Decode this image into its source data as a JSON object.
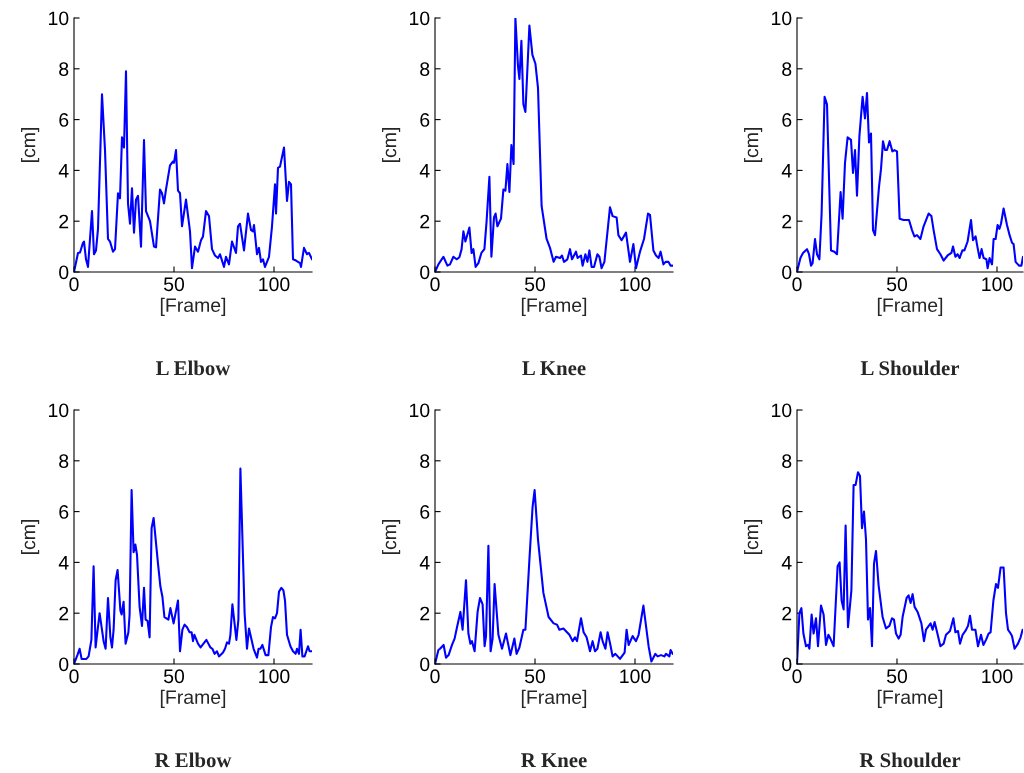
{
  "chart_data": [
    {
      "type": "line",
      "title": "L Elbow",
      "xlabel": "[Frame]",
      "ylabel": "[cm]",
      "color": "#0000ff",
      "grid": false,
      "xlim": [
        0,
        119
      ],
      "ylim": [
        0,
        10
      ],
      "xticks": [
        0,
        50,
        100
      ],
      "yticks": [
        0,
        2,
        4,
        6,
        8,
        10
      ],
      "x": [
        0,
        2,
        3,
        4.5,
        5,
        6,
        7,
        9,
        10,
        11,
        12,
        14,
        15.5,
        17,
        18,
        19.5,
        20.5,
        22,
        23,
        24,
        25,
        26,
        27,
        28,
        29,
        30,
        31,
        32,
        33.5,
        35,
        36,
        38,
        40,
        41,
        43,
        44,
        45,
        46,
        48,
        49.5,
        50,
        51,
        52,
        53,
        54,
        56,
        58,
        59,
        60.5,
        62,
        63.5,
        64.5,
        66,
        67.5,
        69,
        70.5,
        72,
        73,
        75,
        76,
        77.5,
        79,
        81,
        82,
        83,
        85,
        87,
        88.5,
        89.5,
        90,
        91.5,
        92.5,
        93.5,
        94.5,
        95.5,
        97.5,
        99,
        100.5,
        101,
        102,
        103,
        105,
        106.5,
        107.5,
        108.5,
        109.5,
        111,
        113,
        113.5,
        115,
        116.5,
        117.5,
        119
      ],
      "values": [
        0,
        0.75,
        0.77,
        1.15,
        1.2,
        0.5,
        0.2,
        2.4,
        0.7,
        0.85,
        1.7,
        7.0,
        4.8,
        1.3,
        1.2,
        0.8,
        0.9,
        3.1,
        2.9,
        5.3,
        4.9,
        7.9,
        2.7,
        1.9,
        3.3,
        1.55,
        2.85,
        3.0,
        1.0,
        5.2,
        2.4,
        2.0,
        1.0,
        0.97,
        3.25,
        3.1,
        2.7,
        3.25,
        4.2,
        4.35,
        4.3,
        4.8,
        3.2,
        3.1,
        1.8,
        2.85,
        1.6,
        0.15,
        1.0,
        0.8,
        1.25,
        1.4,
        2.4,
        2.2,
        0.9,
        0.65,
        0.55,
        0.7,
        0.2,
        0.6,
        0.3,
        1.2,
        0.75,
        1.8,
        1.9,
        0.85,
        2.3,
        1.65,
        1.6,
        1.85,
        0.7,
        0.95,
        0.4,
        0.5,
        0.2,
        0.6,
        1.8,
        3.45,
        2.3,
        4.1,
        4.15,
        4.9,
        2.8,
        3.55,
        3.45,
        0.5,
        0.45,
        0.35,
        0.2,
        0.95,
        0.7,
        0.75,
        0.5
      ]
    },
    {
      "type": "line",
      "title": "L Knee",
      "xlabel": "[Frame]",
      "ylabel": "[cm]",
      "color": "#0000ff",
      "grid": false,
      "xlim": [
        0,
        119
      ],
      "ylim": [
        0,
        10
      ],
      "xticks": [
        0,
        50,
        100
      ],
      "yticks": [
        0,
        2,
        4,
        6,
        8,
        10
      ],
      "x": [
        0,
        1.7,
        4.2,
        6.2,
        7.5,
        9.2,
        10.8,
        12.2,
        13.3,
        14.2,
        15.2,
        17.2,
        18.3,
        19.2,
        20.3,
        21.7,
        23.2,
        24.7,
        25.8,
        27.2,
        28.2,
        29.5,
        30.3,
        31.2,
        33,
        34.2,
        35.2,
        36.2,
        37.2,
        38.2,
        39.3,
        40.2,
        41.5,
        42.2,
        43.2,
        44.2,
        45.2,
        47.2,
        48.7,
        50.2,
        51.5,
        53.3,
        55.8,
        57.5,
        59.3,
        60.5,
        62.5,
        63.5,
        64.5,
        66.2,
        67.5,
        68.5,
        70.5,
        71.3,
        73,
        73.8,
        75.2,
        76.2,
        77.2,
        78.3,
        79.5,
        81.2,
        82.2,
        83.3,
        84.7,
        87.5,
        88.8,
        90.8,
        91.7,
        93.3,
        95.5,
        97.5,
        99.2,
        100.5,
        102.5,
        104.5,
        106.5,
        107.5,
        109.2,
        110.5,
        111.8,
        112.8,
        114.2,
        115.3,
        116.7,
        117.8,
        118.8
      ],
      "values": [
        0,
        0.3,
        0.6,
        0.25,
        0.3,
        0.6,
        0.5,
        0.58,
        0.9,
        1.6,
        1.2,
        1.75,
        0.75,
        0.9,
        0.2,
        0.35,
        0.75,
        0.9,
        2.0,
        3.75,
        0.6,
        2.15,
        2.3,
        1.8,
        2.1,
        3.25,
        3.2,
        4.25,
        3.15,
        5.0,
        4.25,
        10,
        8.1,
        7.6,
        9.1,
        6.6,
        6.3,
        9.7,
        8.55,
        8.2,
        7.25,
        2.6,
        1.3,
        0.95,
        0.4,
        0.6,
        0.55,
        0.65,
        0.4,
        0.5,
        0.9,
        0.5,
        0.8,
        0.55,
        0.65,
        0.25,
        0.7,
        0.4,
        0.85,
        0.2,
        0.2,
        0.7,
        0.6,
        0.15,
        0.4,
        2.55,
        2.2,
        2.15,
        1.45,
        1.25,
        1.55,
        0.4,
        1.1,
        0.15,
        0.8,
        1.3,
        2.3,
        2.25,
        0.85,
        0.65,
        0.55,
        0.8,
        0.3,
        0.4,
        0.4,
        0.25,
        0.25
      ]
    },
    {
      "type": "line",
      "title": "L Shoulder",
      "xlabel": "[Frame]",
      "ylabel": "[cm]",
      "color": "#0000ff",
      "grid": false,
      "xlim": [
        0,
        113
      ],
      "ylim": [
        0,
        10
      ],
      "xticks": [
        0,
        50,
        100
      ],
      "yticks": [
        0,
        2,
        4,
        6,
        8,
        10
      ],
      "x": [
        0,
        1.7,
        3,
        5,
        6,
        7,
        7.8,
        9,
        10,
        11.2,
        12.3,
        13.8,
        15,
        17,
        18.7,
        20,
        21.8,
        22.8,
        24,
        25.3,
        27,
        28,
        29,
        30,
        31.2,
        32.8,
        34,
        35,
        36,
        37,
        38,
        39,
        41,
        42,
        43,
        44,
        45,
        46.3,
        47.7,
        48.7,
        50,
        51.3,
        53.3,
        56,
        57.5,
        58.7,
        60,
        61.7,
        63.3,
        65.8,
        67.2,
        68.3,
        70,
        71.7,
        73.3,
        75.3,
        77.2,
        78,
        79.2,
        80.3,
        81.3,
        82.7,
        83.7,
        85.3,
        87,
        88,
        89.3,
        90.3,
        91.3,
        92.3,
        93.3,
        94.7,
        95.3,
        96.3,
        97.5,
        98.3,
        99.3,
        100.3,
        101.2,
        102,
        103.3,
        105,
        106.3,
        107.5,
        108.3,
        109.3,
        111,
        112.2,
        113
      ],
      "values": [
        0,
        0.55,
        0.75,
        0.9,
        0.7,
        0.25,
        0.35,
        1.3,
        0.7,
        0.5,
        2.3,
        6.9,
        6.6,
        0.85,
        0.8,
        0.7,
        3.15,
        2.1,
        4.3,
        5.3,
        5.2,
        3.9,
        4.8,
        3.0,
        5.35,
        6.9,
        6.05,
        7.05,
        5.1,
        5.45,
        1.65,
        1.45,
        3.35,
        4.05,
        5.15,
        4.8,
        4.8,
        5.15,
        4.75,
        4.8,
        4.75,
        2.1,
        2.05,
        2.05,
        1.65,
        1.4,
        1.45,
        1.3,
        1.8,
        2.3,
        2.2,
        1.65,
        0.9,
        0.7,
        0.45,
        0.65,
        0.75,
        1.0,
        0.6,
        0.7,
        0.55,
        0.85,
        0.85,
        1.2,
        2.05,
        1.25,
        1.4,
        0.95,
        0.55,
        0.9,
        0.55,
        0.5,
        0.15,
        0.55,
        0.3,
        1.3,
        1.3,
        1.85,
        1.7,
        1.9,
        2.5,
        1.85,
        1.45,
        1.15,
        1.1,
        0.4,
        0.25,
        0.25,
        0.6
      ]
    },
    {
      "type": "line",
      "title": "R Elbow",
      "xlabel": "[Frame]",
      "ylabel": "[cm]",
      "color": "#0000ff",
      "grid": false,
      "xlim": [
        0,
        119
      ],
      "ylim": [
        0,
        10
      ],
      "xticks": [
        0,
        50,
        100
      ],
      "yticks": [
        0,
        2,
        4,
        6,
        8,
        10
      ],
      "x": [
        0,
        1.7,
        2.8,
        3.8,
        6.2,
        7.3,
        8.7,
        9.8,
        10.8,
        12.8,
        14.8,
        15.8,
        17,
        18.2,
        19,
        19.8,
        20.8,
        21.8,
        23.2,
        23.8,
        24.8,
        25.8,
        27.2,
        27.8,
        28.8,
        29.8,
        30.7,
        31.5,
        32.8,
        34,
        35,
        35.8,
        36.8,
        37.8,
        38.8,
        39.8,
        42,
        43.2,
        44.2,
        45.2,
        46.2,
        47.2,
        48.2,
        49.8,
        52,
        53,
        54.2,
        55.3,
        56.5,
        57.8,
        58.8,
        59.5,
        60.2,
        62,
        63.3,
        66.2,
        68.2,
        69.2,
        70.3,
        71.5,
        72.5,
        74.5,
        75.5,
        76.5,
        77.5,
        78.2,
        79.2,
        81.2,
        82.2,
        83.2,
        85.3,
        86.5,
        87.5,
        89.8,
        91.5,
        92.3,
        93.2,
        94.2,
        95.8,
        97.2,
        98.5,
        99.5,
        100.5,
        101.5,
        102.5,
        103.7,
        104.7,
        105.5,
        106.5,
        108.2,
        109.5,
        110.8,
        111.5,
        112.5,
        113.3,
        114.2,
        115.3,
        117,
        117.8,
        119
      ],
      "values": [
        0,
        0.35,
        0.6,
        0.2,
        0.2,
        0.3,
        0.95,
        3.85,
        0.65,
        2.0,
        0.9,
        0.6,
        2.6,
        1.05,
        0.65,
        1.35,
        3.3,
        3.7,
        2.1,
        1.95,
        2.45,
        0.8,
        1.25,
        1.95,
        6.85,
        4.4,
        4.7,
        4.3,
        2.25,
        1.5,
        3.0,
        1.75,
        1.7,
        1.05,
        5.35,
        5.75,
        3.95,
        3.05,
        2.65,
        1.85,
        1.8,
        1.75,
        2.2,
        1.6,
        2.5,
        0.5,
        1.35,
        1.55,
        1.45,
        1.25,
        1.25,
        0.9,
        1.15,
        0.8,
        0.65,
        0.95,
        0.65,
        0.6,
        0.4,
        0.5,
        0.3,
        0.45,
        0.6,
        0.85,
        0.8,
        1.15,
        2.35,
        0.95,
        1.75,
        7.7,
        2.0,
        0.6,
        1.4,
        0.6,
        0.25,
        0.6,
        0.6,
        0.75,
        0.35,
        0.35,
        1.45,
        1.85,
        1.8,
        2.0,
        2.85,
        3.0,
        2.9,
        2.5,
        1.15,
        0.7,
        0.5,
        0.4,
        0.6,
        0.4,
        1.35,
        0.3,
        0.3,
        0.7,
        0.5,
        0.5
      ]
    },
    {
      "type": "line",
      "title": "R Knee",
      "xlabel": "[Frame]",
      "ylabel": "[cm]",
      "color": "#0000ff",
      "grid": false,
      "xlim": [
        0,
        119
      ],
      "ylim": [
        0,
        10
      ],
      "xticks": [
        0,
        50,
        100
      ],
      "yticks": [
        0,
        2,
        4,
        6,
        8,
        10
      ],
      "x": [
        0,
        1.7,
        2.5,
        4.3,
        5.5,
        6.8,
        8.5,
        9.8,
        11,
        12.7,
        13.8,
        15.5,
        16.7,
        17.7,
        18.5,
        19.8,
        21.3,
        22.5,
        23.8,
        24.8,
        25.5,
        26.7,
        27.8,
        28.8,
        29.8,
        31.7,
        33.5,
        35.5,
        37.7,
        39.7,
        40.8,
        42.2,
        44.2,
        45.2,
        47.2,
        48.8,
        49.8,
        51.5,
        54.2,
        56.8,
        59.3,
        61,
        62.2,
        64.2,
        67.2,
        68.8,
        70,
        71,
        73,
        74.3,
        75.8,
        77.5,
        78.8,
        80,
        81.2,
        82.8,
        83.8,
        85.2,
        86.3,
        87.7,
        88.8,
        90.2,
        92.5,
        94.8,
        95.8,
        96.8,
        98.8,
        100.5,
        101.8,
        104.2,
        106.8,
        108.2,
        110.2,
        111.3,
        113,
        114.7,
        115.5,
        117.2,
        117.8,
        118.8
      ],
      "values": [
        0,
        0.55,
        0.6,
        0.75,
        0.25,
        0.35,
        0.75,
        1.0,
        1.45,
        2.05,
        1.35,
        3.3,
        1.2,
        0.8,
        0.9,
        0.5,
        2.05,
        2.6,
        2.35,
        0.7,
        1.1,
        4.65,
        0.5,
        1.0,
        3.15,
        1.15,
        0.6,
        1.2,
        0.35,
        1.0,
        0.4,
        0.65,
        1.35,
        1.35,
        4.1,
        6.2,
        6.85,
        4.9,
        2.8,
        1.85,
        1.6,
        1.55,
        1.35,
        1.4,
        1.15,
        0.9,
        1.05,
        0.9,
        1.8,
        1.25,
        1.05,
        0.5,
        0.9,
        0.5,
        0.6,
        1.25,
        0.9,
        0.6,
        1.25,
        0.75,
        0.3,
        0.4,
        0.2,
        0.45,
        1.35,
        0.75,
        1.1,
        0.9,
        1.15,
        2.3,
        0.7,
        0.1,
        0.4,
        0.3,
        0.35,
        0.3,
        0.4,
        0.3,
        0.55,
        0.4
      ]
    },
    {
      "type": "line",
      "title": "R Shoulder",
      "xlabel": "[Frame]",
      "ylabel": "[cm]",
      "color": "#0000ff",
      "grid": false,
      "xlim": [
        0,
        113
      ],
      "ylim": [
        0,
        10
      ],
      "xticks": [
        0,
        50,
        100
      ],
      "yticks": [
        0,
        2,
        4,
        6,
        8,
        10
      ],
      "x": [
        0,
        1.2,
        2.2,
        3.2,
        4.5,
        5.5,
        6.2,
        7.3,
        8.3,
        9.5,
        10.5,
        12,
        13.3,
        14.5,
        15.7,
        16.7,
        18.3,
        20.3,
        21.3,
        22.3,
        23.3,
        24.3,
        25.5,
        27.2,
        28.3,
        29.3,
        30.5,
        31.5,
        32.5,
        33.5,
        34.5,
        35.5,
        36.5,
        37.5,
        38.5,
        39.5,
        40.8,
        42.8,
        44.5,
        46.2,
        47.5,
        48.5,
        49.5,
        50.8,
        51.8,
        52.8,
        54.8,
        55.8,
        56.8,
        57.8,
        58.8,
        60.3,
        62.2,
        63.5,
        64.5,
        66.8,
        67.8,
        68.8,
        70.2,
        71.7,
        73.3,
        74.5,
        76.5,
        78.2,
        79.2,
        80.5,
        81.5,
        82.8,
        84.2,
        85.5,
        86.5,
        87.5,
        89.2,
        90.5,
        92,
        93.2,
        94.5,
        95.8,
        96.8,
        98.2,
        99.5,
        100.5,
        101.8,
        103.3,
        104.5,
        105.5,
        106.8,
        107.5,
        108.8,
        110.5,
        111.8,
        112.8
      ],
      "values": [
        0,
        2.0,
        2.2,
        1.2,
        0.7,
        0.75,
        0.6,
        1.95,
        1.2,
        1.8,
        0.7,
        2.3,
        1.95,
        0.75,
        1.15,
        1.0,
        0.7,
        3.85,
        4.0,
        2.5,
        2.15,
        5.45,
        1.45,
        2.9,
        7.05,
        7.05,
        7.55,
        7.4,
        5.35,
        6.0,
        4.9,
        1.75,
        2.2,
        0.7,
        3.95,
        4.45,
        3.1,
        1.85,
        1.4,
        1.5,
        1.8,
        1.75,
        1.2,
        1.0,
        1.15,
        1.85,
        2.6,
        2.7,
        2.4,
        2.75,
        2.25,
        2.05,
        1.6,
        0.9,
        1.35,
        1.6,
        1.35,
        1.65,
        1.2,
        0.7,
        0.8,
        1.15,
        1.3,
        1.8,
        1.25,
        1.3,
        0.8,
        1.15,
        1.3,
        1.5,
        1.9,
        1.35,
        1.35,
        0.7,
        1.15,
        0.75,
        0.95,
        1.2,
        1.25,
        2.5,
        3.15,
        3.0,
        3.8,
        3.8,
        2.0,
        1.35,
        1.2,
        1.1,
        0.6,
        0.8,
        1.05,
        1.35
      ]
    }
  ]
}
